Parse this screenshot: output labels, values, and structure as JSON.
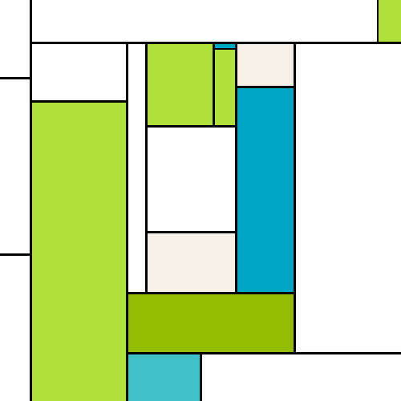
{
  "palette": {
    "white": "#ffffff",
    "lime": "#b0e23b",
    "olive": "#92bd00",
    "blue": "#00a6c3",
    "cyan": "#40c0c8",
    "cream": "#f7f0e6",
    "line": "#000000"
  }
}
